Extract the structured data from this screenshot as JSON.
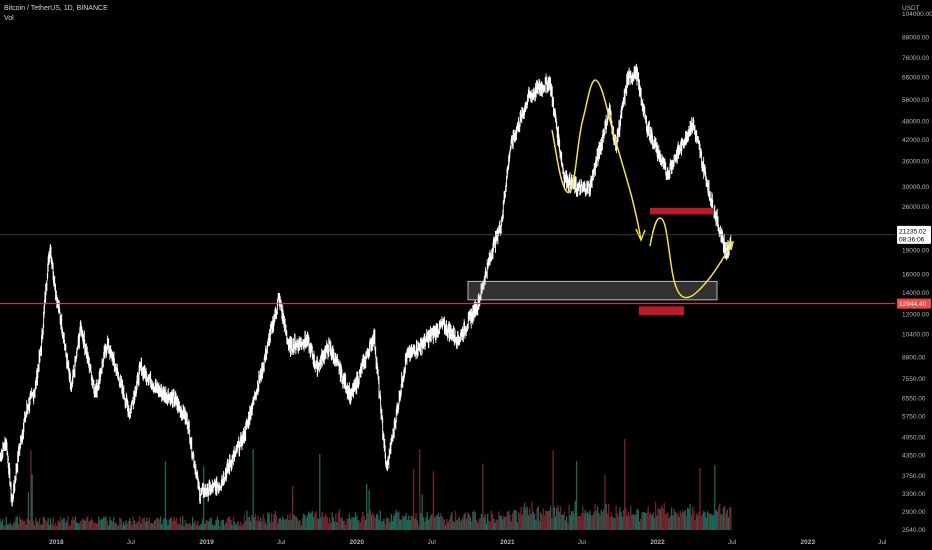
{
  "header": {
    "title": "Bitcoin / TetherUS, 1D, BINANCE",
    "volume_label": "Vol"
  },
  "price_axis": {
    "unit": "USDT",
    "ticks": [
      "104000.00",
      "88000.00",
      "76000.00",
      "66000.00",
      "56000.00",
      "48000.00",
      "42000.00",
      "36000.00",
      "30000.00",
      "26000.00",
      "22000.00",
      "19000.00",
      "16000.00",
      "14000.00",
      "12000.00",
      "10400.00",
      "8800.00",
      "7550.00",
      "6550.00",
      "5750.00",
      "4950.00",
      "4350.00",
      "3750.00",
      "3300.00",
      "2900.00",
      "2540.00"
    ]
  },
  "time_axis": {
    "ticks": [
      {
        "label": "2018",
        "bold": true
      },
      {
        "label": "Jul",
        "bold": false
      },
      {
        "label": "2019",
        "bold": true
      },
      {
        "label": "Jul",
        "bold": false
      },
      {
        "label": "2020",
        "bold": true
      },
      {
        "label": "Jul",
        "bold": false
      },
      {
        "label": "2021",
        "bold": true
      },
      {
        "label": "Jul",
        "bold": false
      },
      {
        "label": "2022",
        "bold": true
      },
      {
        "label": "Jul",
        "bold": false
      },
      {
        "label": "2023",
        "bold": true
      },
      {
        "label": "Jul",
        "bold": false
      }
    ]
  },
  "price_tags": {
    "current_price": "21235.02",
    "countdown": "08:36:06",
    "support_price": "12944.40",
    "current_color": "#ffffff",
    "support_color": "#f04b4b"
  },
  "colors": {
    "background": "#000000",
    "candles": "#ffffff",
    "annotation": "#f5e04a",
    "zone": "#c8c8c8",
    "marker": "#b71c2a",
    "support_line": "#e94040"
  },
  "chart_data": {
    "type": "line",
    "title": "Bitcoin / TetherUS, 1D, BINANCE",
    "y_scale": "log",
    "ylim": [
      2540,
      104000
    ],
    "xlim": [
      "2017-08-17",
      "2023-08-01"
    ],
    "series": [
      {
        "name": "Bitcoin / TetherUS",
        "x": [
          "2017-08-17",
          "2017-09-01",
          "2017-09-15",
          "2017-10-01",
          "2017-10-20",
          "2017-11-10",
          "2017-11-25",
          "2017-12-10",
          "2017-12-17",
          "2018-01-01",
          "2018-01-15",
          "2018-02-06",
          "2018-03-01",
          "2018-04-06",
          "2018-05-05",
          "2018-06-28",
          "2018-07-25",
          "2018-09-01",
          "2018-10-15",
          "2018-11-15",
          "2018-12-15",
          "2019-02-01",
          "2019-04-02",
          "2019-05-15",
          "2019-06-26",
          "2019-07-20",
          "2019-09-01",
          "2019-09-25",
          "2019-10-26",
          "2019-12-18",
          "2020-02-12",
          "2020-03-13",
          "2020-04-30",
          "2020-06-01",
          "2020-07-27",
          "2020-09-05",
          "2020-10-21",
          "2020-11-25",
          "2020-12-17",
          "2021-01-08",
          "2021-02-21",
          "2021-03-13",
          "2021-04-14",
          "2021-05-19",
          "2021-06-22",
          "2021-07-20",
          "2021-09-06",
          "2021-09-21",
          "2021-10-20",
          "2021-11-10",
          "2021-12-04",
          "2022-01-24",
          "2022-03-28",
          "2022-05-12",
          "2022-06-18",
          "2022-06-28"
        ],
        "y": [
          4300,
          4800,
          3100,
          4400,
          6000,
          7000,
          9500,
          16500,
          19500,
          13500,
          11000,
          6900,
          11000,
          6800,
          9800,
          5900,
          8200,
          7000,
          6500,
          5600,
          3300,
          3500,
          5000,
          8000,
          13500,
          9500,
          10000,
          8200,
          9500,
          6600,
          10300,
          3900,
          8800,
          9500,
          11100,
          10000,
          12900,
          19100,
          23000,
          40000,
          57000,
          60000,
          64000,
          32000,
          29500,
          29800,
          52000,
          40000,
          65000,
          68700,
          47000,
          33000,
          47500,
          27000,
          18500,
          20500
        ]
      }
    ],
    "annotations": {
      "current_price": 21235.02,
      "support_level": 12944.4,
      "highlight_zone": [
        13300,
        15200
      ],
      "resistance_marker": [
        24600,
        25800
      ],
      "support_marker": [
        11900,
        12700
      ]
    }
  }
}
